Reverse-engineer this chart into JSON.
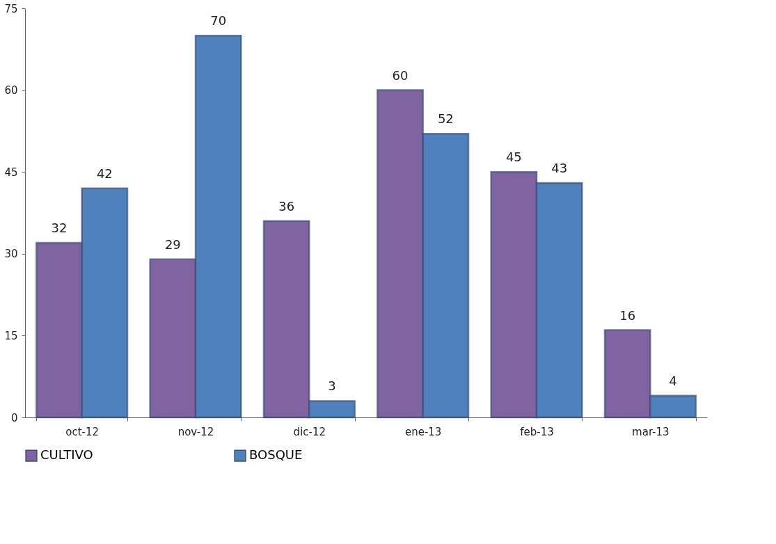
{
  "chart_data": {
    "type": "bar",
    "categories": [
      "oct-12",
      "nov-12",
      "dic-12",
      "ene-13",
      "feb-13",
      "mar-13"
    ],
    "series": [
      {
        "name": "CULTIVO",
        "color": "#8064a2",
        "values": [
          32,
          29,
          36,
          60,
          45,
          16
        ]
      },
      {
        "name": "BOSQUE",
        "color": "#4f81bd",
        "values": [
          42,
          70,
          3,
          52,
          43,
          4
        ]
      }
    ],
    "ylim": [
      0,
      75
    ],
    "yticks": [
      0,
      15,
      30,
      45,
      60,
      75
    ],
    "grid": false,
    "legend": "bottom",
    "data_labels": true
  }
}
